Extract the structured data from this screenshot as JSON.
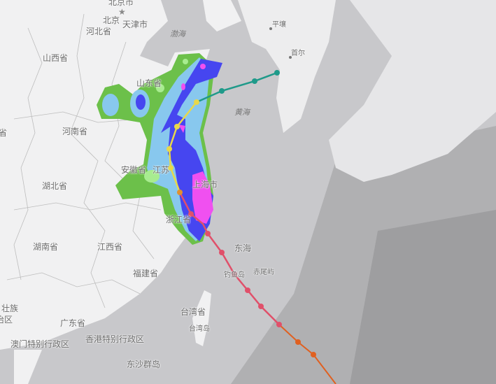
{
  "labels": {
    "beijing_city": "北京市",
    "beijing": "北京",
    "tianjin": "天津市",
    "hebei": "河北省",
    "bohai": "渤海",
    "pyongyang": "平壤",
    "seoul": "首尔",
    "shanxi": "山西省",
    "shandong": "山东省",
    "yellow_sea": "黄海",
    "henan": "河南省",
    "partial_province": "省",
    "anhui": "安徽省",
    "jiangsu": "江苏",
    "shanghai": "上海市",
    "hubei": "湖北省",
    "zhejiang": "浙江省",
    "hunan": "湖南省",
    "jiangxi": "江西省",
    "east_sea": "东海",
    "diaoyu": "钓鱼岛",
    "chiwei": "赤尾屿",
    "fujian": "福建省",
    "taiwan_province": "台湾省",
    "taiwan_island": "台湾岛",
    "guangxi_a": "壮族",
    "guangxi_b": "治区",
    "guangdong": "广东省",
    "hongkong": "香港特别行政区",
    "macau": "澳门特别行政区",
    "dongsha": "东沙群岛"
  },
  "colors": {
    "land": "#f1f1f2",
    "sea": "#c8c8cb",
    "deep_sea": "#a9a9ab",
    "rain_light": "#6cc04a",
    "rain_moderate": "#88c8ee",
    "rain_heavy": "#4646f0",
    "rain_extreme": "#f050f0",
    "track_teal": "#1f9a8a",
    "track_yellow": "#e8d84a",
    "track_red": "#e0506a",
    "track_orange": "#e06020"
  }
}
